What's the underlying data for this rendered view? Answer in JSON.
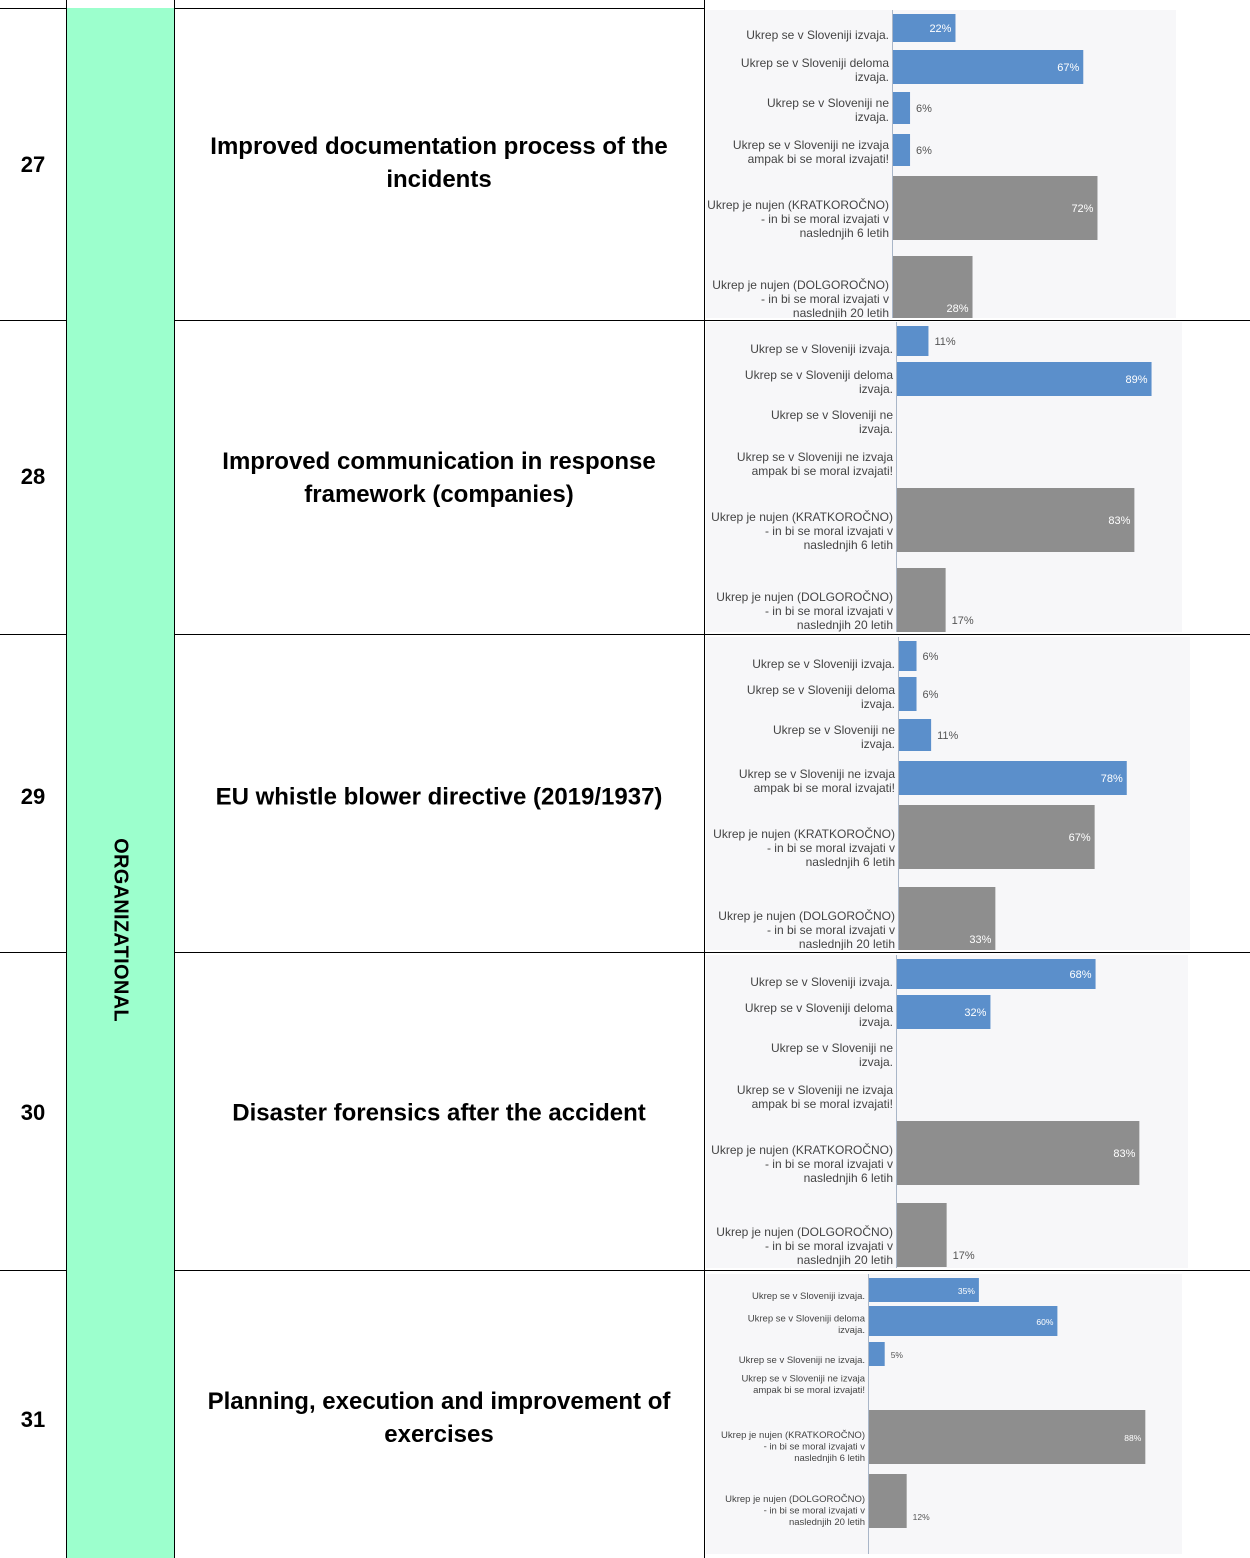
{
  "category": "ORGANIZATIONAL",
  "colors": {
    "category_bg": "#9cffcd",
    "status_bar": "#5b8fcb",
    "need_bar": "#8e8e8e",
    "chart_bg": "#f7f7f9"
  },
  "rows": [
    {
      "number": "27",
      "title": "Improved documentation process of the incidents"
    },
    {
      "number": "28",
      "title": "Improved communication in response framework (companies)"
    },
    {
      "number": "29",
      "title": "EU whistle blower directive (2019/1937)"
    },
    {
      "number": "30",
      "title": "Disaster forensics after the accident"
    },
    {
      "number": "31",
      "title": "Planning, execution and improvement of exercises"
    }
  ],
  "chart_data": [
    {
      "type": "bar",
      "orientation": "horizontal",
      "categories": [
        "Ukrep se v Sloveniji izvaja.",
        "Ukrep se v Sloveniji deloma izvaja.",
        "Ukrep se v Sloveniji ne izvaja.",
        "Ukrep se v Sloveniji ne izvaja ampak bi se moral izvajati!",
        "Ukrep je nujen (KRATKOROČNO) - in bi se moral izvajati v naslednjih 6 letih",
        "Ukrep je nujen (DOLGOROČNO) - in bi se moral izvajati v naslednjih 20 letih"
      ],
      "values": [
        22,
        67,
        6,
        6,
        72,
        28
      ],
      "value_labels": [
        "22%",
        "67%",
        "6%",
        "6%",
        "72%",
        "28%"
      ]
    },
    {
      "type": "bar",
      "orientation": "horizontal",
      "categories": [
        "Ukrep se v Sloveniji izvaja.",
        "Ukrep se v Sloveniji deloma izvaja.",
        "Ukrep se v Sloveniji ne izvaja.",
        "Ukrep se v Sloveniji ne izvaja ampak bi se moral izvajati!",
        "Ukrep je nujen (KRATKOROČNO) - in bi se moral izvajati v naslednjih 6 letih",
        "Ukrep je nujen (DOLGOROČNO) - in bi se moral izvajati v naslednjih 20 letih"
      ],
      "values": [
        11,
        89,
        0,
        0,
        83,
        17
      ],
      "value_labels": [
        "11%",
        "89%",
        "",
        "",
        "83%",
        "17%"
      ]
    },
    {
      "type": "bar",
      "orientation": "horizontal",
      "categories": [
        "Ukrep se v Sloveniji izvaja.",
        "Ukrep se v Sloveniji deloma izvaja.",
        "Ukrep se v Sloveniji ne izvaja.",
        "Ukrep se v Sloveniji ne izvaja ampak bi se moral izvajati!",
        "Ukrep je nujen (KRATKOROČNO) - in bi se moral izvajati v naslednjih 6 letih",
        "Ukrep je nujen (DOLGOROČNO) - in bi se moral izvajati v naslednjih 20 letih"
      ],
      "values": [
        6,
        6,
        11,
        78,
        67,
        33
      ],
      "value_labels": [
        "6%",
        "6%",
        "11%",
        "78%",
        "67%",
        "33%"
      ]
    },
    {
      "type": "bar",
      "orientation": "horizontal",
      "categories": [
        "Ukrep se v Sloveniji izvaja.",
        "Ukrep se v Sloveniji deloma izvaja.",
        "Ukrep se v Sloveniji ne izvaja.",
        "Ukrep se v Sloveniji ne izvaja ampak bi se moral izvajati!",
        "Ukrep je nujen (KRATKOROČNO) - in bi se moral izvajati v naslednjih 6 letih",
        "Ukrep je nujen (DOLGOROČNO) - in bi se moral izvajati v naslednjih 20 letih"
      ],
      "values": [
        68,
        32,
        0,
        0,
        83,
        17
      ],
      "value_labels": [
        "68%",
        "32%",
        "",
        "",
        "83%",
        "17%"
      ]
    },
    {
      "type": "bar",
      "orientation": "horizontal",
      "categories": [
        "Ukrep se v Sloveniji izvaja.",
        "Ukrep se v Sloveniji deloma izvaja.",
        "Ukrep se v Sloveniji ne izvaja.",
        "Ukrep se v Sloveniji ne izvaja ampak bi se moral izvajati!",
        "Ukrep je nujen (KRATKOROČNO) - in bi se moral izvajati v naslednjih 6 letih",
        "Ukrep je nujen (DOLGOROČNO) - in bi se moral izvajati v naslednjih 20 letih"
      ],
      "values": [
        35,
        60,
        5,
        0,
        88,
        12
      ],
      "value_labels": [
        "35%",
        "60%",
        "5%",
        "",
        "88%",
        "12%"
      ]
    }
  ]
}
